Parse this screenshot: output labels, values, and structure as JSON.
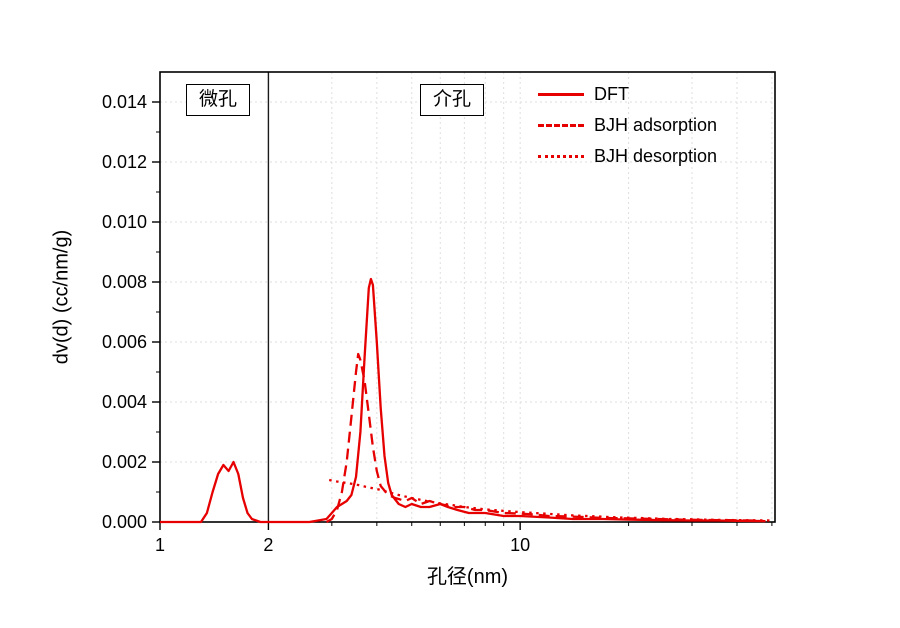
{
  "accent_color": "#e60000",
  "chart_data": {
    "type": "line",
    "title": "",
    "xlabel": "孔径(nm)",
    "ylabel": "dv(d) (cc/nm/g)",
    "xscale": "log",
    "xlim": [
      1,
      51
    ],
    "ylim": [
      0,
      0.015
    ],
    "grid": true,
    "divider_x": 2,
    "xticks": [
      {
        "v": 1,
        "label": "1"
      },
      {
        "v": 2,
        "label": "2"
      },
      {
        "v": 10,
        "label": "10"
      }
    ],
    "xminor": [
      3,
      4,
      5,
      6,
      7,
      8,
      9,
      20,
      30,
      40,
      50
    ],
    "xgrid": [
      2,
      3,
      4,
      5,
      6,
      7,
      8,
      9,
      10,
      20,
      30,
      40,
      50
    ],
    "yticks": [
      {
        "v": 0.0,
        "label": "0.000"
      },
      {
        "v": 0.002,
        "label": "0.002"
      },
      {
        "v": 0.004,
        "label": "0.004"
      },
      {
        "v": 0.006,
        "label": "0.006"
      },
      {
        "v": 0.008,
        "label": "0.008"
      },
      {
        "v": 0.01,
        "label": "0.010"
      },
      {
        "v": 0.012,
        "label": "0.012"
      },
      {
        "v": 0.014,
        "label": "0.014"
      }
    ],
    "yminor": [
      0.001,
      0.003,
      0.005,
      0.007,
      0.009,
      0.011,
      0.013
    ],
    "regions": [
      {
        "label": "微孔"
      },
      {
        "label": "介孔"
      }
    ],
    "series": [
      {
        "name": "DFT",
        "dash": "solid",
        "color": "#e60000",
        "points": [
          [
            1.0,
            0
          ],
          [
            1.3,
            0
          ],
          [
            1.35,
            0.0003
          ],
          [
            1.4,
            0.001
          ],
          [
            1.45,
            0.0016
          ],
          [
            1.5,
            0.0019
          ],
          [
            1.55,
            0.0017
          ],
          [
            1.6,
            0.002
          ],
          [
            1.65,
            0.0016
          ],
          [
            1.7,
            0.0008
          ],
          [
            1.75,
            0.0003
          ],
          [
            1.8,
            0.0001
          ],
          [
            1.9,
            0
          ],
          [
            2.2,
            0
          ],
          [
            2.6,
            0
          ],
          [
            2.9,
            0.0001
          ],
          [
            3.0,
            0.0003
          ],
          [
            3.1,
            0.0005
          ],
          [
            3.2,
            0.0006
          ],
          [
            3.3,
            0.0007
          ],
          [
            3.4,
            0.0009
          ],
          [
            3.5,
            0.0015
          ],
          [
            3.6,
            0.003
          ],
          [
            3.7,
            0.0055
          ],
          [
            3.8,
            0.0078
          ],
          [
            3.85,
            0.0081
          ],
          [
            3.9,
            0.0079
          ],
          [
            4.0,
            0.006
          ],
          [
            4.1,
            0.0038
          ],
          [
            4.2,
            0.0022
          ],
          [
            4.3,
            0.0013
          ],
          [
            4.4,
            0.0009
          ],
          [
            4.6,
            0.0006
          ],
          [
            4.8,
            0.0005
          ],
          [
            5.0,
            0.0006
          ],
          [
            5.3,
            0.0005
          ],
          [
            5.6,
            0.0005
          ],
          [
            6.0,
            0.0006
          ],
          [
            6.3,
            0.0005
          ],
          [
            6.7,
            0.0004
          ],
          [
            7.2,
            0.0003
          ],
          [
            8.0,
            0.0003
          ],
          [
            9.0,
            0.0002
          ],
          [
            10,
            0.0002
          ],
          [
            12,
            0.00015
          ],
          [
            14,
            0.0001
          ],
          [
            17,
            0.0001
          ],
          [
            20,
            8e-05
          ],
          [
            25,
            6e-05
          ],
          [
            30,
            5e-05
          ],
          [
            35,
            5e-05
          ],
          [
            40,
            4e-05
          ],
          [
            48,
            3e-05
          ]
        ]
      },
      {
        "name": "BJH adsorption",
        "dash": "dashed",
        "color": "#e60000",
        "points": [
          [
            2.9,
            0
          ],
          [
            3.0,
            0.0001
          ],
          [
            3.1,
            0.0004
          ],
          [
            3.2,
            0.001
          ],
          [
            3.3,
            0.002
          ],
          [
            3.4,
            0.0035
          ],
          [
            3.5,
            0.005
          ],
          [
            3.55,
            0.0056
          ],
          [
            3.6,
            0.0054
          ],
          [
            3.7,
            0.0047
          ],
          [
            3.8,
            0.0036
          ],
          [
            3.9,
            0.0025
          ],
          [
            4.0,
            0.0017
          ],
          [
            4.1,
            0.0012
          ],
          [
            4.3,
            0.0009
          ],
          [
            4.5,
            0.0008
          ],
          [
            4.8,
            0.0007
          ],
          [
            5.0,
            0.0008
          ],
          [
            5.3,
            0.0006
          ],
          [
            5.6,
            0.0007
          ],
          [
            6.0,
            0.0006
          ],
          [
            6.5,
            0.0005
          ],
          [
            7.0,
            0.0005
          ],
          [
            7.5,
            0.0004
          ],
          [
            8.0,
            0.0004
          ],
          [
            9.0,
            0.0003
          ],
          [
            10,
            0.00028
          ],
          [
            11,
            0.00025
          ],
          [
            12,
            0.0002
          ],
          [
            14,
            0.00018
          ],
          [
            16,
            0.00015
          ],
          [
            18,
            0.00013
          ],
          [
            20,
            0.00012
          ],
          [
            24,
            0.0001
          ],
          [
            28,
            8e-05
          ],
          [
            32,
            7e-05
          ],
          [
            38,
            6e-05
          ],
          [
            45,
            5e-05
          ]
        ]
      },
      {
        "name": "BJH desorption",
        "dash": "dotted",
        "color": "#e60000",
        "points": [
          [
            2.95,
            0.0014
          ],
          [
            3.1,
            0.00135
          ],
          [
            3.3,
            0.0013
          ],
          [
            3.5,
            0.00125
          ],
          [
            3.8,
            0.00115
          ],
          [
            4.0,
            0.0011
          ],
          [
            4.3,
            0.001
          ],
          [
            4.6,
            0.0009
          ],
          [
            5.0,
            0.0008
          ],
          [
            5.5,
            0.0007
          ],
          [
            6.0,
            0.00062
          ],
          [
            6.5,
            0.00056
          ],
          [
            7.0,
            0.0005
          ],
          [
            8.0,
            0.00042
          ],
          [
            9.0,
            0.00037
          ],
          [
            10,
            0.00033
          ],
          [
            12,
            0.00027
          ],
          [
            14,
            0.00022
          ],
          [
            16,
            0.00019
          ],
          [
            19,
            0.00015
          ],
          [
            22,
            0.00013
          ],
          [
            26,
            0.0001
          ],
          [
            30,
            9e-05
          ],
          [
            35,
            7e-05
          ],
          [
            42,
            6e-05
          ],
          [
            50,
            5e-05
          ]
        ]
      }
    ]
  }
}
